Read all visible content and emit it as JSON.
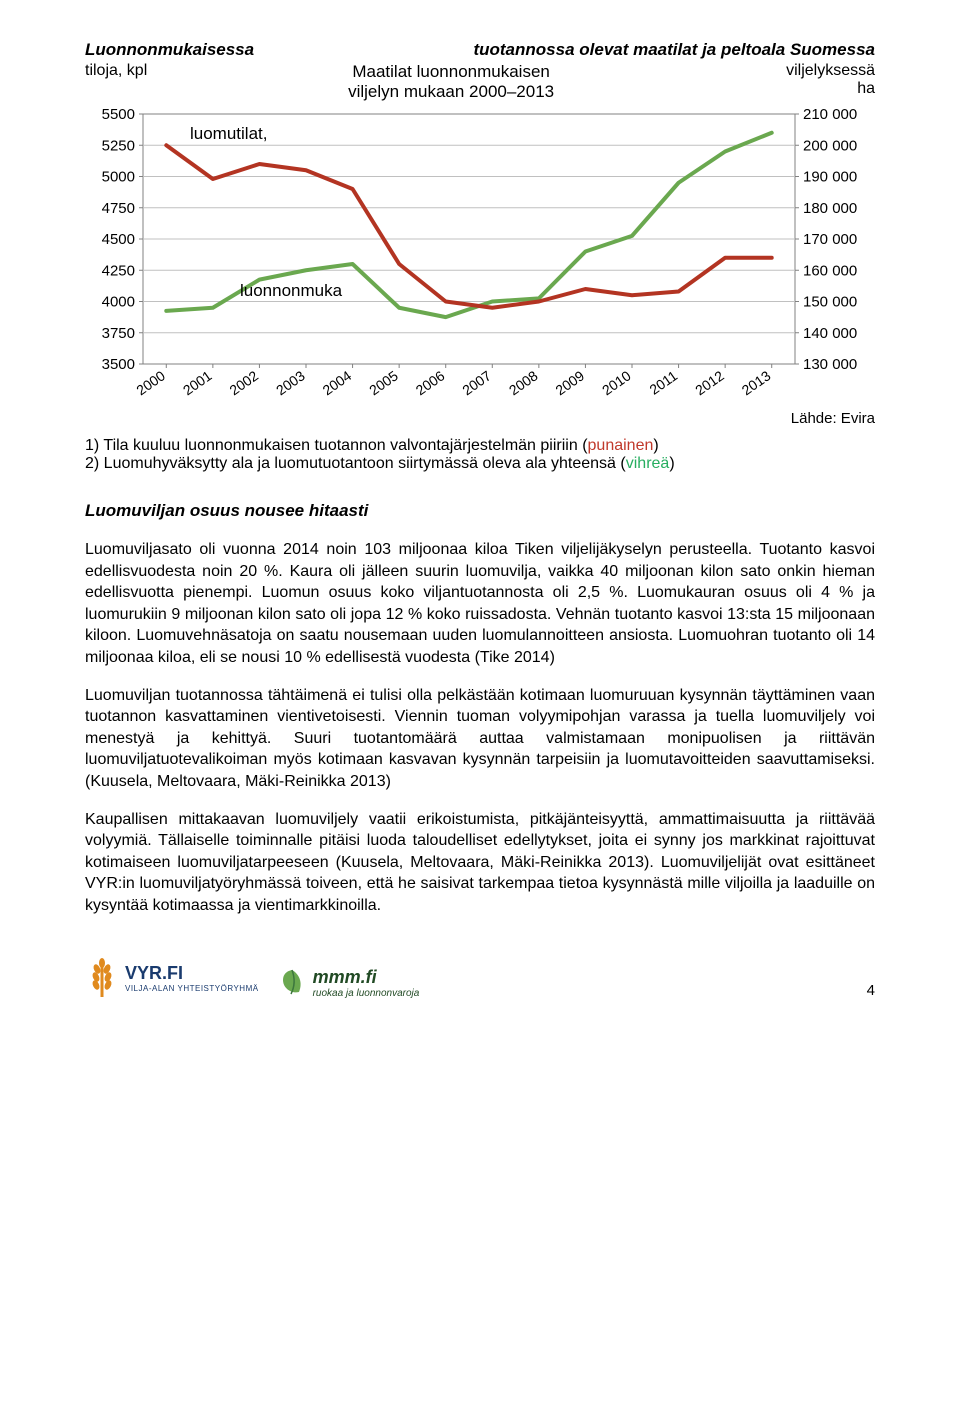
{
  "chart": {
    "main_title_left": "Luonnonmukaisessa",
    "main_title_mid": "tuotannossa  olevat  maatilat  ja  peltoala  Suomessa",
    "sub_left_label": "tiloja, kpl",
    "sub_center_line1": "Maatilat luonnonmukaisen",
    "sub_center_line2": "viljelyn mukaan 2000–2013",
    "sub_right_line1": "viljelyksessä",
    "sub_right_line2": "ha",
    "series_label_1": "luomutilat,",
    "series_label_2": "luonnonmuka",
    "x_categories": [
      "2000",
      "2001",
      "2002",
      "2003",
      "2004",
      "2005",
      "2006",
      "2007",
      "2008",
      "2009",
      "2010",
      "2011",
      "2012",
      "2013"
    ],
    "left_axis_ticks": [
      3500,
      3750,
      4000,
      4250,
      4500,
      4750,
      5000,
      5250,
      5500
    ],
    "right_axis_ticks": [
      130000,
      140000,
      150000,
      160000,
      170000,
      180000,
      190000,
      200000,
      210000
    ],
    "right_axis_tick_labels": [
      "130 000",
      "140 000",
      "150 000",
      "160 000",
      "170 000",
      "180 000",
      "190 000",
      "200 000",
      "210 000"
    ],
    "series_red": [
      5250,
      4980,
      5100,
      5050,
      4900,
      4300,
      4000,
      3950,
      4000,
      4100,
      4050,
      4080,
      4350,
      4350
    ],
    "series_green": [
      147000,
      148000,
      157000,
      160000,
      162000,
      148000,
      145000,
      150000,
      151000,
      166000,
      171000,
      188000,
      198000,
      204000
    ],
    "colors": {
      "red": "#b33422",
      "green": "#6aa84f",
      "grid": "#c0c0c0",
      "border": "#808080",
      "text": "#000000",
      "bg": "#ffffff"
    },
    "line_width": 4,
    "source": "Lähde: Evira"
  },
  "footnotes": {
    "line1_pre": "1) Tila kuuluu luonnonmukaisen tuotannon valvontajärjestelmän piiriin (",
    "line1_kw": "punainen",
    "line1_post": ")",
    "line2_pre": "2) Luomuhyväksytty ala ja luomutuotantoon siirtymässä oleva ala yhteensä (",
    "line2_kw": "vihreä",
    "line2_post": ")"
  },
  "heading": "Luomuviljan osuus nousee hitaasti",
  "paragraphs": {
    "p1": "Luomuviljasato oli vuonna 2014 noin 103 miljoonaa kiloa Tiken viljelijäkyselyn perusteella. Tuotanto kasvoi edellisvuodesta noin 20 %. Kaura oli jälleen suurin luomuvilja, vaikka 40 miljoonan kilon sato onkin hieman edellisvuotta pienempi. Luomun osuus koko viljantuotannosta oli 2,5 %. Luomukauran osuus oli 4 % ja luomurukiin 9 miljoonan kilon sato oli jopa 12 % koko ruissadosta. Vehnän tuotanto kasvoi 13:sta 15 miljoonaan kiloon. Luomuvehnäsatoja on saatu nousemaan uuden luomulannoitteen ansiosta. Luomuohran tuotanto oli 14 miljoonaa kiloa, eli se nousi 10 % edellisestä vuodesta (Tike 2014)",
    "p2": "Luomuviljan tuotannossa tähtäimenä ei tulisi olla pelkästään kotimaan luomuruuan kysynnän täyttäminen vaan tuotannon kasvattaminen vientivetoisesti. Viennin tuoman volyymipohjan varassa ja tuella luomuviljely voi menestyä ja kehittyä. Suuri tuotantomäärä auttaa valmistamaan monipuolisen ja riittävän luomuviljatuotevalikoiman myös kotimaan kasvavan kysynnän tarpeisiin ja luomutavoitteiden saavuttamiseksi. (Kuusela, Meltovaara, Mäki-Reinikka 2013)",
    "p3": "Kaupallisen mittakaavan luomuviljely vaatii erikoistumista, pitkäjänteisyyttä, ammattimaisuutta ja riittävää volyymiä. Tällaiselle toiminnalle pitäisi luoda taloudelliset edellytykset, joita ei synny jos markkinat rajoittuvat kotimaiseen luomuviljatarpeeseen (Kuusela, Meltovaara, Mäki-Reinikka 2013). Luomuviljelijät ovat esittäneet VYR:in luomuviljatyöryhmässä toiveen, että he saisivat tarkempaa tietoa kysynnästä mille viljoilla ja laaduille on kysyntää kotimaassa ja vientimarkkinoilla."
  },
  "footer": {
    "logo1_main": "VYR.FI",
    "logo1_sub": "VILJA-ALAN YHTEISTYÖRYHMÄ",
    "logo2_main": "mmm.fi",
    "logo2_sub": "ruokaa ja luonnonvaroja",
    "page_number": "4"
  }
}
